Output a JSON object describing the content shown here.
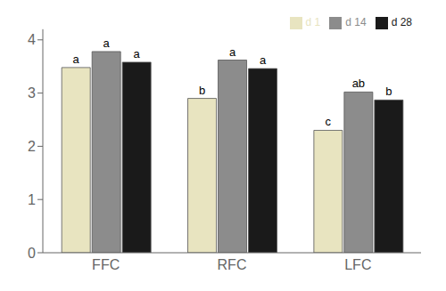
{
  "chart_data": {
    "type": "bar",
    "categories": [
      "FFC",
      "RFC",
      "LFC"
    ],
    "series": [
      {
        "name": "d 1",
        "color": "#e8e4c0",
        "values": [
          3.48,
          2.9,
          2.3
        ],
        "annotations": [
          "a",
          "b",
          "c"
        ]
      },
      {
        "name": "d 14",
        "color": "#8c8c8c",
        "values": [
          3.78,
          3.62,
          3.02
        ],
        "annotations": [
          "a",
          "a",
          "ab"
        ]
      },
      {
        "name": "d 28",
        "color": "#1a1a1a",
        "values": [
          3.58,
          3.46,
          2.87
        ],
        "annotations": [
          "a",
          "a",
          "b"
        ]
      }
    ],
    "ylim": [
      0,
      4.2
    ],
    "yticks": [
      0,
      1,
      2,
      3,
      4
    ],
    "grid": false,
    "legend": "upper right"
  }
}
